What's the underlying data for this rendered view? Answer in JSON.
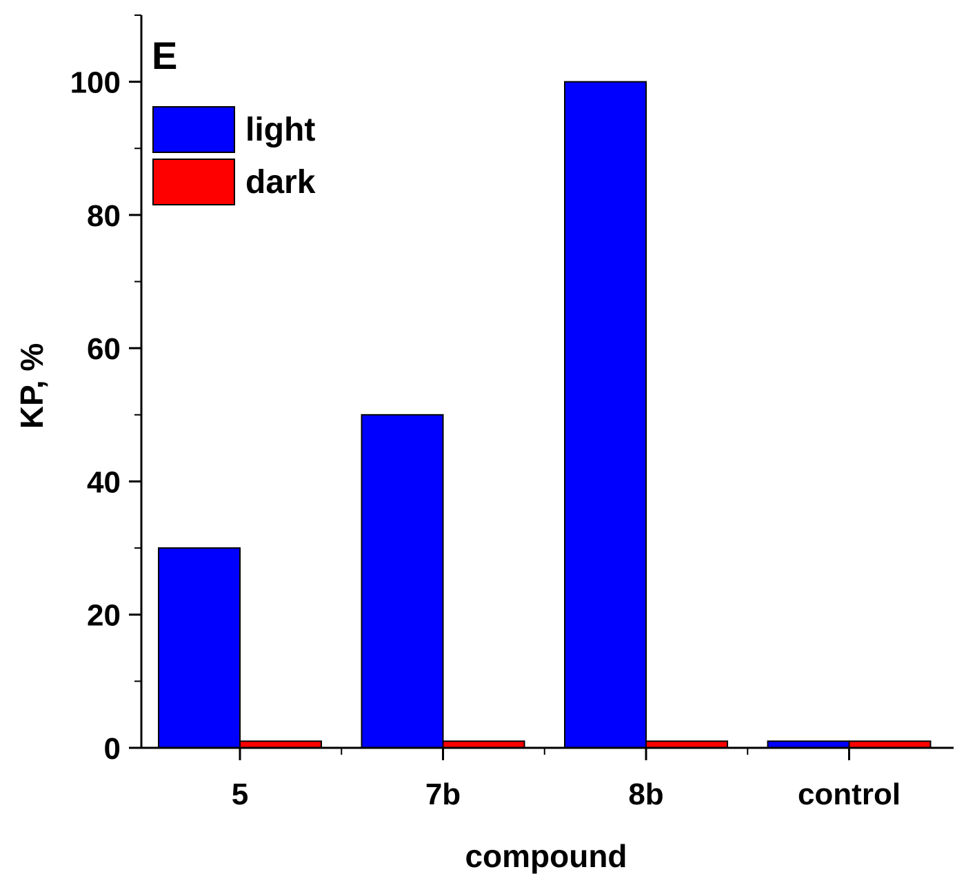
{
  "chart_data": {
    "type": "bar",
    "panel_label": "E",
    "xlabel": "compound",
    "ylabel": "KP, %",
    "categories": [
      "5",
      "7b",
      "8b",
      "control"
    ],
    "series": [
      {
        "name": "light",
        "color": "#0000ff",
        "values": [
          30,
          50,
          100,
          1
        ]
      },
      {
        "name": "dark",
        "color": "#ff0000",
        "values": [
          1,
          1,
          1,
          1
        ]
      }
    ],
    "ylim": [
      0,
      110
    ],
    "yticks": [
      0,
      20,
      40,
      60,
      80,
      100
    ],
    "ytick_labels": [
      "0",
      "20",
      "40",
      "60",
      "80",
      "100"
    ],
    "grid": false,
    "legend_position": "top-left"
  }
}
